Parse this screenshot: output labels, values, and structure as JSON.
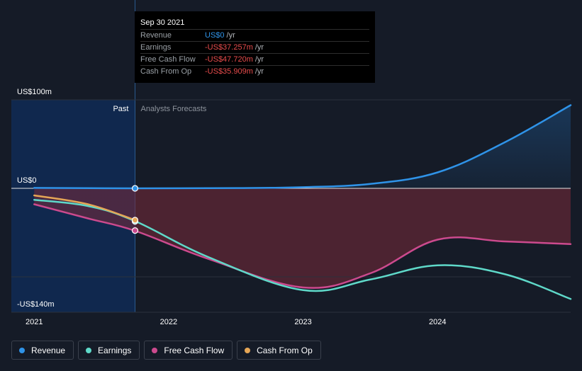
{
  "tooltip": {
    "date": "Sep 30 2021",
    "rows": [
      {
        "label": "Revenue",
        "value": "US$0",
        "unit": "/yr",
        "color": "#2f93e8"
      },
      {
        "label": "Earnings",
        "value": "-US$37.257m",
        "unit": "/yr",
        "color": "#e84c4c"
      },
      {
        "label": "Free Cash Flow",
        "value": "-US$47.720m",
        "unit": "/yr",
        "color": "#e84c4c"
      },
      {
        "label": "Cash From Op",
        "value": "-US$35.909m",
        "unit": "/yr",
        "color": "#e84c4c"
      }
    ]
  },
  "regions": {
    "past": "Past",
    "forecast": "Analysts Forecasts"
  },
  "legend": [
    {
      "label": "Revenue",
      "color": "#2f93e8"
    },
    {
      "label": "Earnings",
      "color": "#5fd9c9"
    },
    {
      "label": "Free Cash Flow",
      "color": "#cc4a8e"
    },
    {
      "label": "Cash From Op",
      "color": "#e5a656"
    }
  ],
  "chart_data": {
    "type": "line",
    "title": "",
    "xlabel": "",
    "ylabel": "",
    "x_ticks": [
      "2021",
      "2022",
      "2023",
      "2024"
    ],
    "x_tick_values": [
      2021.0,
      2022.0,
      2023.0,
      2024.0
    ],
    "xlim": [
      2020.83,
      2024.99
    ],
    "ylim": [
      -140,
      100
    ],
    "y_ticks": [
      {
        "value": 100,
        "label": "US$100m"
      },
      {
        "value": 0,
        "label": "US$0"
      },
      {
        "value": -140,
        "label": "-US$140m"
      }
    ],
    "past_end": 2021.75,
    "series": [
      {
        "name": "Revenue",
        "color": "#2f93e8",
        "fill": true,
        "points": [
          [
            2021.0,
            0.5
          ],
          [
            2021.75,
            0
          ],
          [
            2022.5,
            0.3
          ],
          [
            2023.0,
            1.3
          ],
          [
            2023.5,
            5
          ],
          [
            2024.0,
            18
          ],
          [
            2024.5,
            52
          ],
          [
            2024.99,
            94
          ]
        ]
      },
      {
        "name": "Earnings",
        "color": "#5fd9c9",
        "fill": false,
        "points": [
          [
            2021.0,
            -13
          ],
          [
            2021.4,
            -20
          ],
          [
            2021.75,
            -37
          ],
          [
            2022.3,
            -78
          ],
          [
            2023.0,
            -115
          ],
          [
            2023.5,
            -103
          ],
          [
            2024.0,
            -87
          ],
          [
            2024.5,
            -97
          ],
          [
            2024.99,
            -125
          ]
        ]
      },
      {
        "name": "Free Cash Flow",
        "color": "#cc4a8e",
        "fill": true,
        "points": [
          [
            2021.0,
            -18
          ],
          [
            2021.4,
            -34
          ],
          [
            2021.75,
            -48
          ],
          [
            2022.3,
            -80
          ],
          [
            2023.0,
            -112
          ],
          [
            2023.5,
            -96
          ],
          [
            2024.0,
            -58
          ],
          [
            2024.5,
            -60
          ],
          [
            2024.99,
            -63
          ]
        ]
      },
      {
        "name": "Cash From Op",
        "color": "#e5a656",
        "fill": false,
        "points": [
          [
            2021.0,
            -8
          ],
          [
            2021.4,
            -18
          ],
          [
            2021.75,
            -35.9
          ]
        ]
      }
    ],
    "markers": [
      {
        "series": "Revenue",
        "x": 2021.75,
        "y": 0
      },
      {
        "series": "Earnings",
        "x": 2021.75,
        "y": -37.3
      },
      {
        "series": "Cash From Op",
        "x": 2021.75,
        "y": -35.9
      },
      {
        "series": "Free Cash Flow",
        "x": 2021.75,
        "y": -47.7
      }
    ]
  }
}
